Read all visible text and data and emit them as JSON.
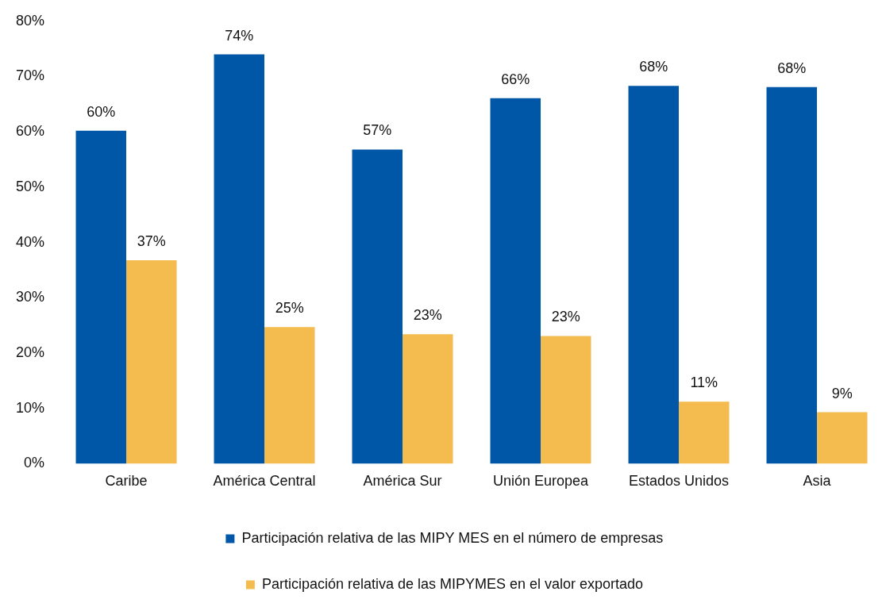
{
  "chart_data": {
    "type": "bar",
    "categories": [
      "Caribe",
      "América Central",
      "América Sur",
      "Unión Europea",
      "Estados Unidos",
      "Asia"
    ],
    "series": [
      {
        "name": "Participación relativa de las MIPY MES en el número de empresas",
        "color": "#0057a8",
        "values": [
          60.2,
          74,
          56.8,
          66.1,
          68.3,
          68.1
        ],
        "value_labels": [
          "60%",
          "74%",
          "57%",
          "66%",
          "68%",
          "68%"
        ]
      },
      {
        "name": "Participación relativa de las MIPYMES en el valor exportado",
        "color": "#f4bc4f",
        "values": [
          36.8,
          24.7,
          23.4,
          23.1,
          11.2,
          9.3
        ],
        "value_labels": [
          "37%",
          "25%",
          "23%",
          "23%",
          "11%",
          "9%"
        ]
      }
    ],
    "ylim": [
      0,
      80
    ],
    "yticks": [
      {
        "value": 0,
        "label": "0%"
      },
      {
        "value": 10,
        "label": "10%"
      },
      {
        "value": 20,
        "label": "20%"
      },
      {
        "value": 30,
        "label": "30%"
      },
      {
        "value": 40,
        "label": "40%"
      },
      {
        "value": 50,
        "label": "50%"
      },
      {
        "value": 60,
        "label": "60%"
      },
      {
        "value": 70,
        "label": "70%"
      },
      {
        "value": 80,
        "label": "80%"
      }
    ],
    "grid": false,
    "legend": "bottom"
  }
}
